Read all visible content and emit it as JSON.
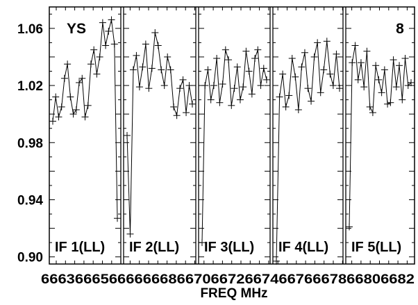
{
  "chart_data": {
    "type": "line",
    "corner_label_left": "YS",
    "corner_label_right": "8",
    "xlabel": "FREQ MHz",
    "ylabel": "",
    "ylim": [
      0.895,
      1.075
    ],
    "y_ticks": [
      "1.06",
      "1.02",
      "0.98",
      "0.94",
      "0.90"
    ],
    "y_tick_values": [
      1.06,
      1.02,
      0.98,
      0.94,
      0.9
    ],
    "x_tick_labels_text": "66636665666666686670667266746676667866806682",
    "grid": false,
    "panels": [
      {
        "label": "IF 1(LL)",
        "values": [
          0.995,
          1.012,
          0.998,
          1.005,
          1.025,
          1.035,
          1.012,
          1.0,
          1.003,
          1.022,
          1.025,
          0.998,
          1.006,
          1.035,
          1.045,
          1.028,
          1.04,
          1.064,
          1.048,
          1.058,
          1.066,
          1.049,
          0.927
        ]
      },
      {
        "label": "IF 2(LL)",
        "values": [
          0.985,
          0.916,
          1.031,
          1.041,
          1.019,
          1.033,
          1.049,
          1.018,
          1.032,
          1.057,
          1.048,
          1.031,
          1.02,
          1.04,
          1.031,
          1.005,
          0.999,
          1.018,
          1.024,
          1.001,
          1.02,
          1.007
        ]
      },
      {
        "label": "IF 3(LL)",
        "values": [
          0.91,
          1.02,
          1.031,
          1.01,
          1.02,
          1.039,
          1.008,
          1.021,
          1.045,
          1.038,
          1.006,
          1.018,
          1.033,
          1.01,
          1.019,
          1.044,
          1.03,
          1.014,
          1.039,
          1.045,
          1.02,
          1.032,
          1.024
        ]
      },
      {
        "label": "IF 4(LL)",
        "values": [
          0.897,
          1.012,
          1.028,
          1.005,
          1.013,
          1.039,
          1.026,
          1.003,
          1.033,
          1.043,
          1.018,
          1.009,
          1.04,
          1.05,
          1.015,
          1.031,
          1.051,
          1.028,
          1.02,
          1.042,
          1.018
        ]
      },
      {
        "label": "IF 5(LL)",
        "values": [
          0.921,
          1.036,
          1.048,
          1.024,
          1.036,
          1.019,
          1.044,
          1.005,
          1.001,
          1.034,
          1.024,
          1.015,
          1.031,
          1.007,
          1.008,
          1.038,
          1.019,
          1.034,
          1.01,
          1.039,
          1.02,
          1.022
        ]
      }
    ]
  }
}
